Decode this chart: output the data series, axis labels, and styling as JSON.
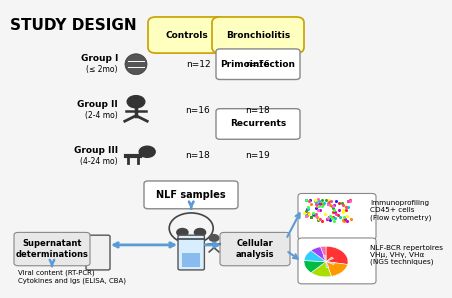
{
  "title": "STUDY DESIGN",
  "bg_color": "#f5f5f5",
  "controls_label": "Controls",
  "bronchiolitis_label": "Bronchiolitis",
  "primoinfection_label": "Primoinfection",
  "recurrents_label": "Recurrents",
  "groups": [
    {
      "name": "Group I",
      "sub": "(≤ 2mo)",
      "n_ctrl": "n=12",
      "n_bronch": "n=16"
    },
    {
      "name": "Group II",
      "sub": "(2-4 mo)",
      "n_ctrl": "n=16",
      "n_bronch": "n=18"
    },
    {
      "name": "Group III",
      "sub": "(4-24 mo)",
      "n_ctrl": "n=18",
      "n_bronch": "n=19"
    }
  ],
  "nlf_label": "NLF samples",
  "cellular_label": "Cellular\nanalysis",
  "supernatant_label": "Supernatant\ndeterminations",
  "immuno_label": "Immunoprofiling\nCD45+ cells\n(Flow cytometry)",
  "bcr_label": "NLF-BCR repertoires\nVHμ, VHγ, VHα\n(NGS techniques)",
  "viral_label": "Viral content (RT-PCR)\nCytokines and Igs (ELISA, CBA)",
  "arrow_color": "#5b9bd5",
  "box_edge_yellow": "#c8a000",
  "box_fill_yellow": "#ffffc0",
  "box_edge_gray": "#888888",
  "box_fill_gray": "#e8e8e8"
}
